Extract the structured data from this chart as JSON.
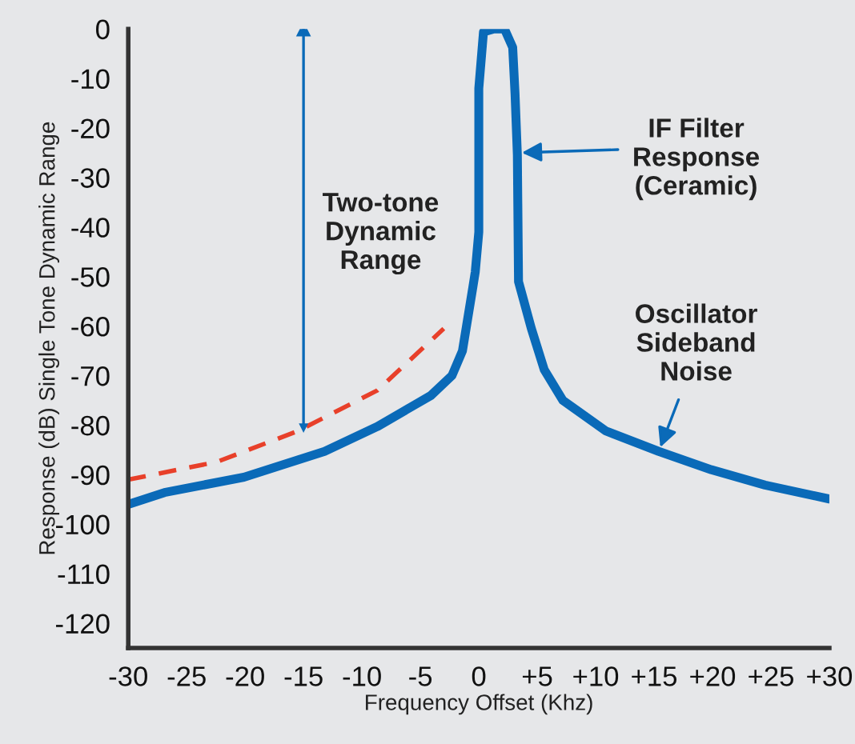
{
  "chart_data": {
    "type": "line",
    "xlabel": "Frequency Offset (Khz)",
    "ylabel": "Response (dB) Single Tone Dynamic Range",
    "xlim": [
      -30,
      30
    ],
    "ylim": [
      -125,
      0
    ],
    "xticks": [
      -30,
      -25,
      -20,
      -15,
      -10,
      -5,
      0,
      {
        "value": 5,
        "label": "+5"
      },
      {
        "value": 10,
        "label": "+10"
      },
      {
        "value": 15,
        "label": "+15"
      },
      {
        "value": 20,
        "label": "+20"
      },
      {
        "value": 25,
        "label": "+25"
      },
      {
        "value": 30,
        "label": "+30"
      }
    ],
    "yticks": [
      0,
      -10,
      -20,
      -30,
      -40,
      -50,
      -60,
      -70,
      -80,
      -90,
      -100,
      -110,
      -120
    ],
    "grid": false,
    "legend": false,
    "ref_lines": [
      {
        "axis": "x",
        "value": -15,
        "color": "#0a6ab8",
        "line_style": "solid"
      }
    ],
    "series": [
      {
        "color": "#0a6ab8",
        "line_style": "solid",
        "x": [
          -30,
          -26.9,
          -20.1,
          -13.2,
          -8.7,
          -4.1,
          -2.3,
          -1.4,
          -0.5,
          -0.3,
          0,
          0,
          0,
          0,
          0.4,
          1.3,
          2.2,
          2.9,
          3.1,
          3.3,
          3.4,
          4.5,
          5.6,
          7.2,
          10.9,
          15.4,
          19.9,
          24.5,
          30
        ],
        "values": [
          -96,
          -93.6,
          -90.5,
          -85.3,
          -80.3,
          -74,
          -70,
          -65,
          -52,
          -49,
          -41,
          -36,
          -28.5,
          -12,
          -0.6,
          0,
          0,
          -3.7,
          -13,
          -25.4,
          -51,
          -60.5,
          -68.8,
          -75,
          -81.2,
          -85.3,
          -89,
          -92.1,
          -94.9
        ]
      },
      {
        "color": "#e8402a",
        "line_style": "dashed",
        "x": [
          -30,
          -22.4,
          -15.5,
          -8.7,
          -3
        ],
        "values": [
          -91,
          -87.4,
          -81.2,
          -73,
          -60.5
        ]
      }
    ],
    "annotations": [
      "Two-tone\nDynamic\nRange",
      {
        "text": "IF Filter\nResponse\n(Ceramic)",
        "x": 3.3,
        "y": -25
      },
      {
        "text": "Oscillator\nSideband\nNoise",
        "x": 15.4,
        "y": -85.3
      }
    ]
  }
}
